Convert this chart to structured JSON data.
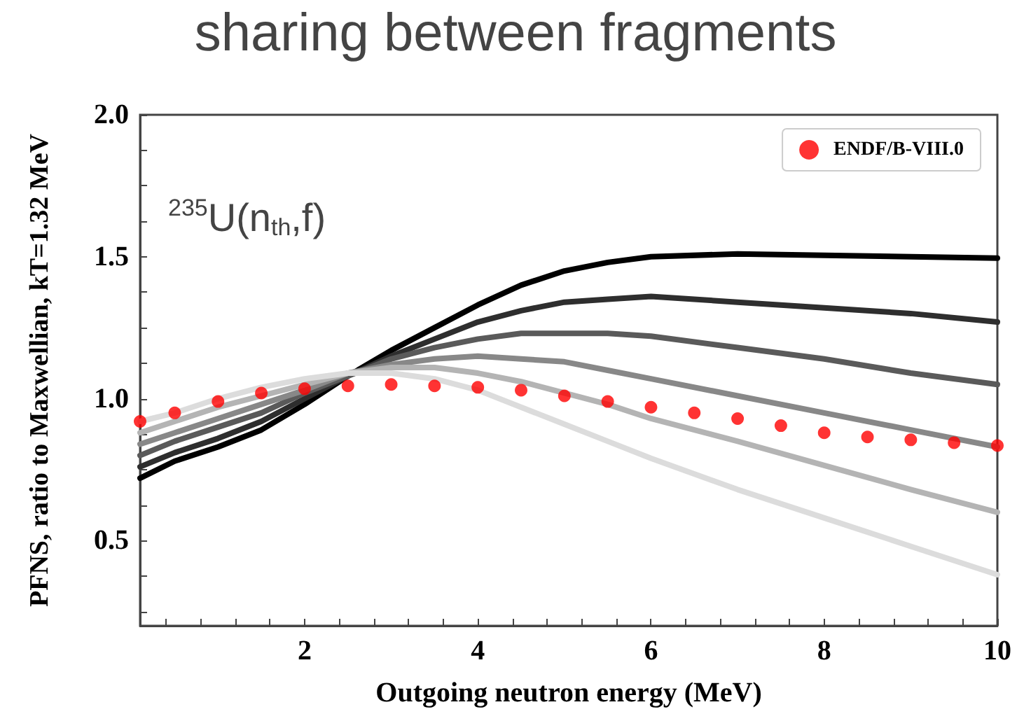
{
  "chart_data": {
    "type": "line",
    "title": "sharing between fragments",
    "xlabel": "Outgoing neutron energy (MeV)",
    "ylabel": "PFNS, ratio to Maxwellian, kT=1.32 MeV",
    "annotations": [
      "$^{235}$U(n$_{th}$,f)"
    ],
    "x": [
      0.1,
      0.5,
      1,
      1.5,
      2,
      2.5,
      3,
      3.5,
      4,
      4.5,
      5,
      5.5,
      6,
      7,
      8,
      9,
      10
    ],
    "series": [
      {
        "color": "#000000",
        "values": [
          0.72,
          0.78,
          0.83,
          0.89,
          0.98,
          1.08,
          1.17,
          1.25,
          1.33,
          1.4,
          1.45,
          1.48,
          1.5,
          1.51,
          1.505,
          1.5,
          1.495
        ]
      },
      {
        "color": "#2e2e2e",
        "values": [
          0.76,
          0.81,
          0.86,
          0.92,
          1.0,
          1.08,
          1.15,
          1.21,
          1.27,
          1.31,
          1.34,
          1.35,
          1.36,
          1.34,
          1.32,
          1.3,
          1.27
        ]
      },
      {
        "color": "#5a5a5a",
        "values": [
          0.8,
          0.85,
          0.9,
          0.95,
          1.02,
          1.08,
          1.14,
          1.18,
          1.21,
          1.23,
          1.23,
          1.23,
          1.22,
          1.18,
          1.14,
          1.09,
          1.05
        ]
      },
      {
        "color": "#888888",
        "values": [
          0.84,
          0.88,
          0.93,
          0.98,
          1.03,
          1.09,
          1.12,
          1.14,
          1.15,
          1.14,
          1.13,
          1.1,
          1.07,
          1.01,
          0.95,
          0.89,
          0.83
        ]
      },
      {
        "color": "#b4b4b4",
        "values": [
          0.88,
          0.92,
          0.97,
          1.01,
          1.05,
          1.09,
          1.11,
          1.11,
          1.09,
          1.06,
          1.02,
          0.98,
          0.93,
          0.85,
          0.765,
          0.68,
          0.6
        ]
      },
      {
        "color": "#dcdcdc",
        "values": [
          0.92,
          0.95,
          1.0,
          1.04,
          1.07,
          1.09,
          1.09,
          1.07,
          1.03,
          0.97,
          0.91,
          0.85,
          0.79,
          0.68,
          0.58,
          0.48,
          0.38
        ]
      },
      {
        "name": "ENDF/B-VIII.0",
        "type": "scatter",
        "color": "#ff0000",
        "marker": "circle",
        "x": [
          0.1,
          0.5,
          1,
          1.5,
          2,
          2.5,
          3,
          3.5,
          4,
          4.5,
          5,
          5.5,
          6,
          6.5,
          7,
          7.5,
          8,
          8.5,
          9,
          9.5,
          10
        ],
        "values": [
          0.92,
          0.95,
          0.99,
          1.02,
          1.035,
          1.045,
          1.05,
          1.045,
          1.04,
          1.03,
          1.01,
          0.99,
          0.97,
          0.95,
          0.93,
          0.905,
          0.88,
          0.865,
          0.855,
          0.845,
          0.835
        ]
      }
    ],
    "xlim": [
      0.1,
      10
    ],
    "xticks": [
      {
        "value": 0.4,
        "label": null
      },
      {
        "value": 0.8,
        "label": null
      },
      {
        "value": 1.2,
        "label": null
      },
      {
        "value": 1.6,
        "label": null
      },
      2,
      {
        "value": 2.4,
        "label": null
      },
      {
        "value": 2.8,
        "label": null
      },
      {
        "value": 3.2,
        "label": null
      },
      {
        "value": 3.6,
        "label": null
      },
      4,
      {
        "value": 4.4,
        "label": null
      },
      {
        "value": 4.8,
        "label": null
      },
      {
        "value": 5.2,
        "label": null
      },
      {
        "value": 5.6,
        "label": null
      },
      6,
      {
        "value": 6.4,
        "label": null
      },
      {
        "value": 6.8,
        "label": null
      },
      {
        "value": 7.2,
        "label": null
      },
      {
        "value": 7.6,
        "label": null
      },
      8,
      {
        "value": 8.4,
        "label": null
      },
      {
        "value": 8.8,
        "label": null
      },
      {
        "value": 9.2,
        "label": null
      },
      {
        "value": 9.6,
        "label": null
      },
      10
    ],
    "ylim": [
      0.2,
      2.0
    ],
    "yticks": [
      {
        "value": 0.25,
        "label": null
      },
      {
        "value": 0.375,
        "label": null
      },
      0.5,
      {
        "value": 0.625,
        "label": null
      },
      {
        "value": 0.75,
        "label": null
      },
      {
        "value": 0.875,
        "label": null
      },
      {
        "value": 1,
        "label": "1.0"
      },
      {
        "value": 1.125,
        "label": null
      },
      {
        "value": 1.25,
        "label": null
      },
      {
        "value": 1.375,
        "label": null
      },
      1.5,
      {
        "value": 1.625,
        "label": null
      },
      {
        "value": 1.75,
        "label": null
      },
      {
        "value": 1.875,
        "label": null
      },
      {
        "value": 2,
        "label": "2.0"
      }
    ],
    "grid": false,
    "legend": "top right",
    "line_style": "solid"
  }
}
